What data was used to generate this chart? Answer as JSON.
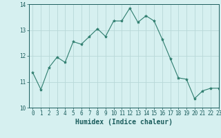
{
  "x": [
    0,
    1,
    2,
    3,
    4,
    5,
    6,
    7,
    8,
    9,
    10,
    11,
    12,
    13,
    14,
    15,
    16,
    17,
    18,
    19,
    20,
    21,
    22,
    23
  ],
  "y": [
    11.35,
    10.7,
    11.55,
    11.95,
    11.75,
    12.55,
    12.45,
    12.75,
    13.05,
    12.75,
    13.35,
    13.35,
    13.85,
    13.3,
    13.55,
    13.35,
    12.65,
    11.9,
    11.15,
    11.1,
    10.35,
    10.65,
    10.75,
    10.75
  ],
  "line_color": "#2e7d6e",
  "marker": "*",
  "marker_size": 3,
  "bg_color": "#d6f0f0",
  "grid_color": "#b8d8d8",
  "xlabel": "Humidex (Indice chaleur)",
  "ylim": [
    10,
    14
  ],
  "xlim": [
    -0.5,
    23
  ],
  "yticks": [
    10,
    11,
    12,
    13,
    14
  ],
  "xticks": [
    0,
    1,
    2,
    3,
    4,
    5,
    6,
    7,
    8,
    9,
    10,
    11,
    12,
    13,
    14,
    15,
    16,
    17,
    18,
    19,
    20,
    21,
    22,
    23
  ],
  "font_color": "#1a5c5c",
  "tick_fontsize": 5.5,
  "xlabel_fontsize": 7.0
}
